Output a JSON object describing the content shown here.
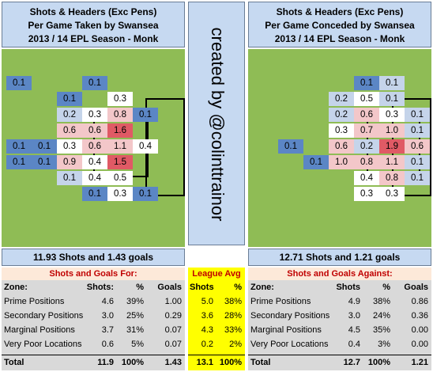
{
  "colors": {
    "title_bg": "#c6d9f1",
    "pitch_green": "#8fbc55",
    "cell_blue_dark": "#5b86c5",
    "cell_blue_mid": "#c5d4ea",
    "cell_white": "#ffffff",
    "cell_pink": "#f3c7c9",
    "cell_red": "#e05a65",
    "table_head_bg": "#fde9d9",
    "table_head_text": "#c00000",
    "table_bg": "#d9d9d9",
    "league_avg_bg": "#ffff00"
  },
  "left": {
    "title_lines": [
      "Shots & Headers (Exc Pens)",
      "Per Game Taken by Swansea",
      "2013 / 14 EPL Season - Monk"
    ],
    "cells": [
      {
        "value": "0.1",
        "tone": "blue_dark",
        "col": 0,
        "row": 0
      },
      {
        "value": "0.1",
        "tone": "blue_dark",
        "col": 3,
        "row": 0
      },
      {
        "value": "0.1",
        "tone": "blue_dark",
        "col": 2,
        "row": 1
      },
      {
        "value": "0.3",
        "tone": "white",
        "col": 4,
        "row": 1
      },
      {
        "value": "0.2",
        "tone": "blue_mid",
        "col": 2,
        "row": 2
      },
      {
        "value": "0.3",
        "tone": "white",
        "col": 3,
        "row": 2
      },
      {
        "value": "0.8",
        "tone": "pink",
        "col": 4,
        "row": 2
      },
      {
        "value": "0.1",
        "tone": "blue_dark",
        "col": 5,
        "row": 2
      },
      {
        "value": "0.6",
        "tone": "pink",
        "col": 2,
        "row": 3
      },
      {
        "value": "0.6",
        "tone": "pink",
        "col": 3,
        "row": 3
      },
      {
        "value": "1.6",
        "tone": "red",
        "col": 4,
        "row": 3
      },
      {
        "value": "0.1",
        "tone": "blue_dark",
        "col": 0,
        "row": 4
      },
      {
        "value": "0.1",
        "tone": "blue_dark",
        "col": 1,
        "row": 4
      },
      {
        "value": "0.3",
        "tone": "white",
        "col": 2,
        "row": 4
      },
      {
        "value": "0.6",
        "tone": "pink",
        "col": 3,
        "row": 4
      },
      {
        "value": "1.1",
        "tone": "pink",
        "col": 4,
        "row": 4
      },
      {
        "value": "0.4",
        "tone": "white",
        "col": 5,
        "row": 4
      },
      {
        "value": "0.1",
        "tone": "blue_dark",
        "col": 0,
        "row": 5
      },
      {
        "value": "0.1",
        "tone": "blue_dark",
        "col": 1,
        "row": 5
      },
      {
        "value": "0.9",
        "tone": "pink",
        "col": 2,
        "row": 5
      },
      {
        "value": "0.4",
        "tone": "white",
        "col": 3,
        "row": 5
      },
      {
        "value": "1.5",
        "tone": "red",
        "col": 4,
        "row": 5
      },
      {
        "value": "0.1",
        "tone": "blue_mid",
        "col": 2,
        "row": 6
      },
      {
        "value": "0.4",
        "tone": "white",
        "col": 3,
        "row": 6
      },
      {
        "value": "0.5",
        "tone": "white",
        "col": 4,
        "row": 6
      },
      {
        "value": "0.1",
        "tone": "blue_dark",
        "col": 3,
        "row": 7
      },
      {
        "value": "0.3",
        "tone": "white",
        "col": 4,
        "row": 7
      },
      {
        "value": "0.1",
        "tone": "blue_dark",
        "col": 5,
        "row": 7
      }
    ],
    "summary": "11.93 Shots and 1.43 goals",
    "table_title": "Shots and Goals For:",
    "headers": {
      "zone": "Zone:",
      "shots": "Shots:",
      "pct": "%",
      "goals": "Goals"
    },
    "rows": [
      {
        "zone": "Prime Positions",
        "shots": "4.6",
        "pct": "39%",
        "goals": "1.00"
      },
      {
        "zone": "Secondary Positions",
        "shots": "3.0",
        "pct": "25%",
        "goals": "0.29"
      },
      {
        "zone": "Marginal Positions",
        "shots": "3.7",
        "pct": "31%",
        "goals": "0.07"
      },
      {
        "zone": "Very Poor Locations",
        "shots": "0.6",
        "pct": "5%",
        "goals": "0.07"
      }
    ],
    "total": {
      "zone": "Total",
      "shots": "11.9",
      "pct": "100%",
      "goals": "1.43"
    }
  },
  "middle": {
    "credit": "created by @colinttrainor",
    "league_avg": {
      "title": "League Avg",
      "headers": {
        "shots": "Shots",
        "pct": "%"
      },
      "rows": [
        {
          "shots": "5.0",
          "pct": "38%"
        },
        {
          "shots": "3.6",
          "pct": "28%"
        },
        {
          "shots": "4.3",
          "pct": "33%"
        },
        {
          "shots": "0.2",
          "pct": "2%"
        }
      ],
      "total": {
        "shots": "13.1",
        "pct": "100%"
      }
    }
  },
  "right": {
    "title_lines": [
      "Shots & Headers (Exc Pens)",
      "Per Game Conceded by Swansea",
      "2013 / 14 EPL Season - Monk"
    ],
    "cells": [
      {
        "value": "0.1",
        "tone": "blue_dark",
        "col": 4,
        "row": 0
      },
      {
        "value": "0.1",
        "tone": "blue_mid",
        "col": 5,
        "row": 0
      },
      {
        "value": "0.2",
        "tone": "blue_mid",
        "col": 3,
        "row": 1
      },
      {
        "value": "0.5",
        "tone": "white",
        "col": 4,
        "row": 1
      },
      {
        "value": "0.1",
        "tone": "blue_mid",
        "col": 5,
        "row": 1
      },
      {
        "value": "0.2",
        "tone": "blue_mid",
        "col": 3,
        "row": 2
      },
      {
        "value": "0.6",
        "tone": "pink",
        "col": 4,
        "row": 2
      },
      {
        "value": "0.3",
        "tone": "white",
        "col": 5,
        "row": 2
      },
      {
        "value": "0.1",
        "tone": "blue_mid",
        "col": 6,
        "row": 2
      },
      {
        "value": "0.3",
        "tone": "white",
        "col": 3,
        "row": 3
      },
      {
        "value": "0.7",
        "tone": "pink",
        "col": 4,
        "row": 3
      },
      {
        "value": "1.0",
        "tone": "pink",
        "col": 5,
        "row": 3
      },
      {
        "value": "0.1",
        "tone": "blue_mid",
        "col": 6,
        "row": 3
      },
      {
        "value": "0.1",
        "tone": "blue_dark",
        "col": 1,
        "row": 4
      },
      {
        "value": "0.6",
        "tone": "pink",
        "col": 3,
        "row": 4
      },
      {
        "value": "0.2",
        "tone": "blue_mid",
        "col": 4,
        "row": 4
      },
      {
        "value": "1.9",
        "tone": "red",
        "col": 5,
        "row": 4
      },
      {
        "value": "0.6",
        "tone": "pink",
        "col": 6,
        "row": 4
      },
      {
        "value": "0.1",
        "tone": "blue_dark",
        "col": 2,
        "row": 5
      },
      {
        "value": "1.0",
        "tone": "pink",
        "col": 3,
        "row": 5
      },
      {
        "value": "0.8",
        "tone": "pink",
        "col": 4,
        "row": 5
      },
      {
        "value": "1.1",
        "tone": "pink",
        "col": 5,
        "row": 5
      },
      {
        "value": "0.1",
        "tone": "blue_mid",
        "col": 6,
        "row": 5
      },
      {
        "value": "0.4",
        "tone": "white",
        "col": 4,
        "row": 6
      },
      {
        "value": "0.8",
        "tone": "pink",
        "col": 5,
        "row": 6
      },
      {
        "value": "0.1",
        "tone": "blue_mid",
        "col": 6,
        "row": 6
      },
      {
        "value": "0.3",
        "tone": "white",
        "col": 4,
        "row": 7
      },
      {
        "value": "0.3",
        "tone": "white",
        "col": 5,
        "row": 7
      }
    ],
    "summary": "12.71 Shots and 1.21 goals",
    "table_title": "Shots and Goals Against:",
    "headers": {
      "zone": "Zone:",
      "shots": "Shots",
      "pct": "%",
      "goals": "Goals"
    },
    "rows": [
      {
        "zone": "Prime Positions",
        "shots": "4.9",
        "pct": "38%",
        "goals": "0.86"
      },
      {
        "zone": "Secondary Positions",
        "shots": "3.0",
        "pct": "24%",
        "goals": "0.36"
      },
      {
        "zone": "Marginal Positions",
        "shots": "4.5",
        "pct": "35%",
        "goals": "0.00"
      },
      {
        "zone": "Very Poor Locations",
        "shots": "0.4",
        "pct": "3%",
        "goals": "0.00"
      }
    ],
    "total": {
      "zone": "Total",
      "shots": "12.7",
      "pct": "100%",
      "goals": "1.21"
    }
  }
}
